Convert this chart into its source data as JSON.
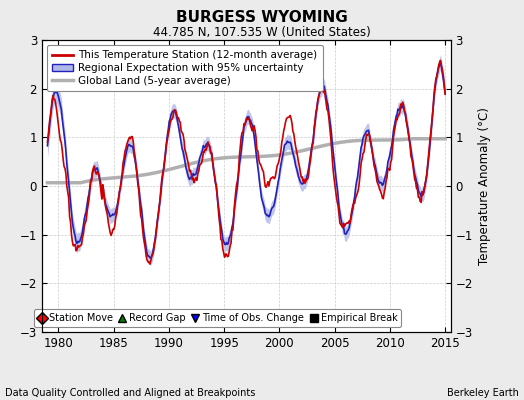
{
  "title": "BURGESS WYOMING",
  "subtitle": "44.785 N, 107.535 W (United States)",
  "ylabel": "Temperature Anomaly (°C)",
  "xlabel_left": "Data Quality Controlled and Aligned at Breakpoints",
  "xlabel_right": "Berkeley Earth",
  "ylim": [
    -3,
    3
  ],
  "xlim": [
    1978.5,
    2015.5
  ],
  "xticks": [
    1980,
    1985,
    1990,
    1995,
    2000,
    2005,
    2010,
    2015
  ],
  "yticks": [
    -3,
    -2,
    -1,
    0,
    1,
    2,
    3
  ],
  "legend_entries": [
    "This Temperature Station (12-month average)",
    "Regional Expectation with 95% uncertainty",
    "Global Land (5-year average)"
  ],
  "bg_color": "#ebebeb",
  "plot_bg_color": "#ffffff",
  "station_color": "#cc0000",
  "regional_color": "#2222bb",
  "regional_fill_color": "#b0b8e8",
  "global_color": "#b0b0b0",
  "global_linewidth": 2.5,
  "regional_linewidth": 1.2,
  "station_linewidth": 1.2,
  "seed": 137
}
